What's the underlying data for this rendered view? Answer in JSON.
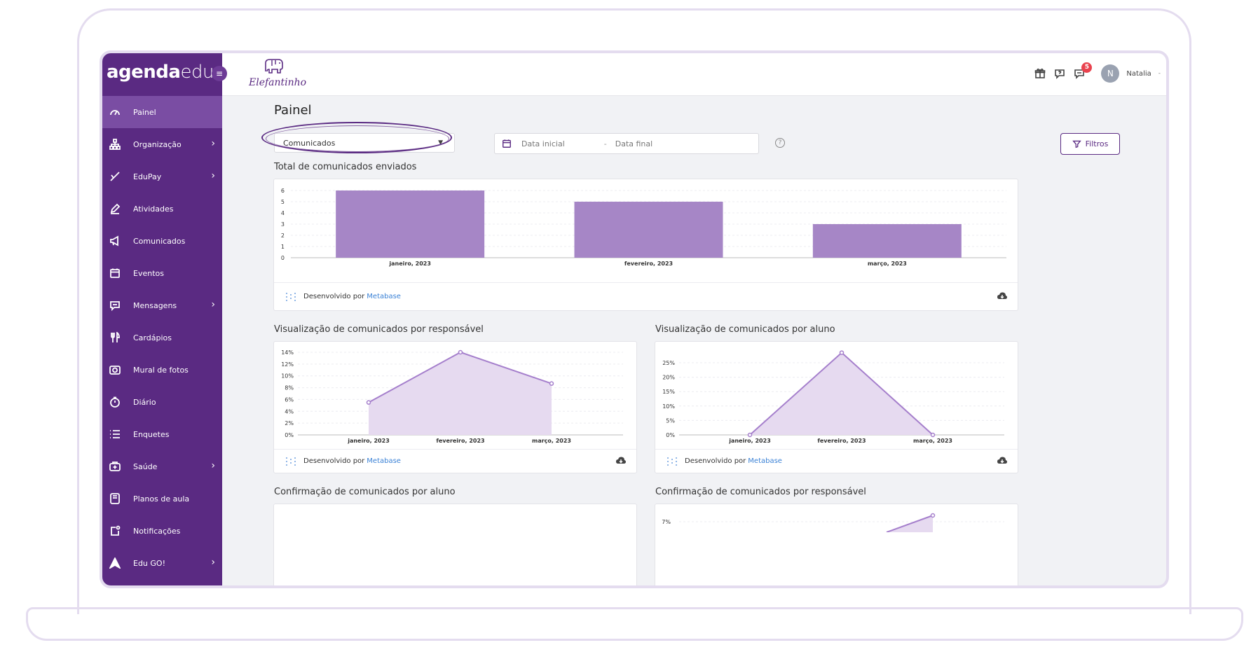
{
  "app": {
    "logo_bold": "agenda",
    "logo_light": "edu",
    "school_name": "Elefantinho"
  },
  "sidebar": {
    "items": [
      {
        "label": "Painel",
        "icon": "gauge-icon",
        "chevron": false,
        "active": true
      },
      {
        "label": "Organização",
        "icon": "org-chart-icon",
        "chevron": true
      },
      {
        "label": "EduPay",
        "icon": "check-pen-icon",
        "chevron": true
      },
      {
        "label": "Atividades",
        "icon": "pencil-icon",
        "chevron": false
      },
      {
        "label": "Comunicados",
        "icon": "megaphone-icon",
        "chevron": false
      },
      {
        "label": "Eventos",
        "icon": "calendar-icon",
        "chevron": false
      },
      {
        "label": "Mensagens",
        "icon": "chat-icon",
        "chevron": true
      },
      {
        "label": "Cardápios",
        "icon": "cutlery-icon",
        "chevron": false
      },
      {
        "label": "Mural de fotos",
        "icon": "camera-icon",
        "chevron": false
      },
      {
        "label": "Diário",
        "icon": "stopwatch-icon",
        "chevron": false
      },
      {
        "label": "Enquetes",
        "icon": "list-icon",
        "chevron": false
      },
      {
        "label": "Saúde",
        "icon": "medkit-icon",
        "chevron": true
      },
      {
        "label": "Planos de aula",
        "icon": "notebook-icon",
        "chevron": false
      },
      {
        "label": "Notificações",
        "icon": "notification-icon",
        "chevron": false
      },
      {
        "label": "Edu GO!",
        "icon": "navigation-arrow-icon",
        "chevron": true
      }
    ]
  },
  "topbar": {
    "notification_count": "5",
    "avatar_initial": "N",
    "user_name": "Natalia",
    "user_caret": "-"
  },
  "main": {
    "title": "Painel",
    "select_value": "Comunicados",
    "date_start_placeholder": "Data inicial",
    "date_sep": "-",
    "date_end_placeholder": "Data final",
    "help": "?",
    "filters_label": "Filtros",
    "footer_prefix": "Desenvolvido por",
    "footer_link": "Metabase",
    "sections": {
      "total": "Total de comunicados enviados",
      "view_responsavel": "Visualização de comunicados por responsável",
      "view_aluno": "Visualização de comunicados por aluno",
      "confirm_aluno": "Confirmação de comunicados por aluno",
      "confirm_responsavel": "Confirmação de comunicados por responsável"
    }
  },
  "colors": {
    "sidebar": "#5a2a82",
    "bar": "#a686c6",
    "line": "#a57fcc",
    "area": "#e6daf0"
  },
  "chart_data": [
    {
      "type": "bar",
      "title": "Total de comunicados enviados",
      "categories": [
        "janeiro, 2023",
        "fevereiro, 2023",
        "março, 2023"
      ],
      "values": [
        6,
        5,
        3
      ],
      "ylim": [
        0,
        6
      ],
      "yticks": [
        "0",
        "1",
        "2",
        "3",
        "4",
        "5",
        "6"
      ]
    },
    {
      "type": "area",
      "title": "Visualização de comunicados por responsável",
      "categories": [
        "janeiro, 2023",
        "fevereiro, 2023",
        "março, 2023"
      ],
      "values": [
        5.5,
        14,
        8.7
      ],
      "ylim": [
        0,
        14
      ],
      "yticks": [
        "0%",
        "2%",
        "4%",
        "6%",
        "8%",
        "10%",
        "12%",
        "14%"
      ]
    },
    {
      "type": "area",
      "title": "Visualização de comunicados por aluno",
      "categories": [
        "janeiro, 2023",
        "fevereiro, 2023",
        "março, 2023"
      ],
      "values": [
        0,
        28.5,
        0
      ],
      "ylim": [
        0,
        25
      ],
      "yticks": [
        "0%",
        "5%",
        "10%",
        "15%",
        "20%",
        "25%"
      ]
    },
    {
      "type": "area",
      "title": "Confirmação de comunicados por responsável",
      "yticks": [
        "7%"
      ]
    }
  ]
}
